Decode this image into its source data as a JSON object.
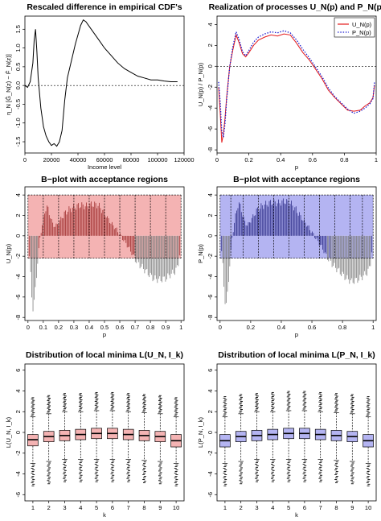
{
  "chart_data": [
    {
      "id": "p1",
      "type": "line",
      "title": "Rescaled difference in empirical CDF's",
      "xlabel": "Income level",
      "ylabel": "η_N [Ĝ_N(z) − F̂_N(z)]",
      "xlim": [
        0,
        120000
      ],
      "ylim": [
        -1.8,
        1.85
      ],
      "xticks": [
        0,
        20000,
        40000,
        60000,
        80000,
        100000,
        120000
      ],
      "yticks": [
        -1.5,
        -1.0,
        -0.5,
        0.0,
        0.5,
        1.0,
        1.5
      ],
      "reference_line": 0,
      "series": [
        {
          "color": "#000000",
          "x": [
            0,
            2000,
            4000,
            6000,
            7000,
            8000,
            9000,
            10000,
            12000,
            14000,
            16000,
            18000,
            20000,
            22000,
            24000,
            26000,
            28000,
            30000,
            32000,
            34000,
            36000,
            38000,
            40000,
            42000,
            44000,
            46000,
            50000,
            55000,
            60000,
            65000,
            70000,
            75000,
            80000,
            85000,
            90000,
            95000,
            100000,
            105000,
            110000,
            115000
          ],
          "y": [
            0.0,
            -0.05,
            0.1,
            0.6,
            1.2,
            1.5,
            0.9,
            0.2,
            -0.6,
            -1.1,
            -1.35,
            -1.5,
            -1.6,
            -1.55,
            -1.62,
            -1.5,
            -1.2,
            -0.4,
            0.2,
            0.5,
            0.8,
            1.1,
            1.35,
            1.6,
            1.75,
            1.7,
            1.5,
            1.25,
            1.0,
            0.8,
            0.6,
            0.45,
            0.35,
            0.25,
            0.2,
            0.15,
            0.15,
            0.12,
            0.1,
            0.1
          ]
        }
      ]
    },
    {
      "id": "p2",
      "type": "line",
      "title": "Realization of processes U_N(p) and P_N(p)",
      "xlabel": "p",
      "ylabel": "U_N(p) / P_N(p)",
      "xlim": [
        0,
        1
      ],
      "ylim": [
        -8.3,
        4.8
      ],
      "xticks": [
        0,
        0.2,
        0.4,
        0.6,
        0.8,
        1.0
      ],
      "yticks": [
        -8,
        -6,
        -4,
        -2,
        0,
        2,
        4
      ],
      "reference_line": 0,
      "legend": {
        "position": "top-right"
      },
      "series": [
        {
          "name": "U_N(p)",
          "color": "#e41a1c",
          "dash": false,
          "x": [
            0.01,
            0.02,
            0.03,
            0.04,
            0.05,
            0.06,
            0.08,
            0.1,
            0.12,
            0.14,
            0.16,
            0.18,
            0.2,
            0.23,
            0.26,
            0.3,
            0.34,
            0.38,
            0.42,
            0.46,
            0.5,
            0.54,
            0.58,
            0.62,
            0.66,
            0.7,
            0.74,
            0.78,
            0.82,
            0.86,
            0.9,
            0.93,
            0.96,
            0.98,
            0.99
          ],
          "y": [
            -2.0,
            -4.5,
            -7.3,
            -6.5,
            -5.0,
            -3.0,
            0.0,
            1.6,
            3.0,
            2.2,
            1.2,
            0.9,
            1.3,
            2.0,
            2.5,
            2.8,
            3.0,
            2.9,
            3.1,
            3.0,
            2.2,
            1.3,
            0.6,
            -0.3,
            -1.2,
            -2.3,
            -3.0,
            -3.6,
            -4.2,
            -4.3,
            -4.2,
            -3.8,
            -3.5,
            -3.0,
            -1.8
          ]
        },
        {
          "name": "P_N(p)",
          "color": "#1f1fd0",
          "dash": true,
          "x": [
            0.01,
            0.02,
            0.03,
            0.04,
            0.05,
            0.06,
            0.08,
            0.1,
            0.12,
            0.14,
            0.16,
            0.18,
            0.2,
            0.23,
            0.26,
            0.3,
            0.34,
            0.38,
            0.42,
            0.46,
            0.5,
            0.54,
            0.58,
            0.62,
            0.66,
            0.7,
            0.74,
            0.78,
            0.82,
            0.86,
            0.9,
            0.93,
            0.96,
            0.98,
            0.99
          ],
          "y": [
            -1.5,
            -3.5,
            -6.2,
            -6.8,
            -5.5,
            -3.3,
            0.0,
            1.9,
            3.3,
            2.5,
            1.4,
            1.0,
            1.5,
            2.3,
            2.8,
            3.1,
            3.3,
            3.2,
            3.4,
            3.2,
            2.5,
            1.6,
            0.8,
            -0.1,
            -1.0,
            -2.1,
            -2.9,
            -3.5,
            -4.1,
            -4.5,
            -4.3,
            -4.0,
            -3.6,
            -3.1,
            -1.5
          ]
        }
      ]
    },
    {
      "id": "p3",
      "type": "bar",
      "title": "B−plot with acceptance regions",
      "xlabel": "p",
      "ylabel": "U_N(p)",
      "xlim": [
        -0.02,
        1.02
      ],
      "ylim": [
        -8.3,
        4.8
      ],
      "xticks": [
        0,
        0.1,
        0.2,
        0.3,
        0.4,
        0.5,
        0.6,
        0.7,
        0.8,
        0.9,
        1.0
      ],
      "yticks": [
        -8,
        -6,
        -4,
        -2,
        0,
        2,
        4
      ],
      "band_upper": 4.0,
      "band_lower": -2.2,
      "region_breaks": [
        0.0,
        0.1,
        0.2,
        0.3,
        0.4,
        0.5,
        0.6,
        0.7,
        0.8,
        0.9,
        1.0
      ],
      "region_fill": "#f4b3b3",
      "bars_in": "#a03030",
      "bars_out": "#808080",
      "process_ref": "p2.U_N"
    },
    {
      "id": "p4",
      "type": "bar",
      "title": "B−plot with acceptance regions",
      "xlabel": "p",
      "ylabel": "P_N(p)",
      "xlim": [
        -0.02,
        1.02
      ],
      "ylim": [
        -8.3,
        4.8
      ],
      "xticks": [
        0,
        0.2,
        0.4,
        0.6,
        0.8,
        1.0
      ],
      "yticks": [
        -8,
        -6,
        -4,
        -2,
        0,
        2,
        4
      ],
      "band_upper": 4.0,
      "band_lower": -2.2,
      "region_breaks": [
        0.0,
        0.07,
        0.15,
        0.25,
        0.35,
        0.45,
        0.55,
        0.65,
        0.75,
        0.85,
        0.93,
        1.0
      ],
      "region_fill": "#b4b4f2",
      "bars_in": "#30308a",
      "bars_out": "#808080",
      "process_ref": "p2.P_N"
    },
    {
      "id": "p5",
      "type": "boxplot",
      "title": "Distribution of local minima L(U_N, I_k)",
      "xlabel": "k",
      "ylabel": "L(U_N, I_k)",
      "categories": [
        "1",
        "2",
        "3",
        "4",
        "5",
        "6",
        "7",
        "8",
        "9",
        "10"
      ],
      "ylim": [
        -6.6,
        6.6
      ],
      "yticks": [
        -6,
        -4,
        -2,
        0,
        2,
        4,
        6
      ],
      "box_fill": "#f4b3b3",
      "boxes": [
        {
          "q1": -1.3,
          "median": -0.7,
          "q3": -0.2,
          "whisker_low": -3.0,
          "whisker_high": 1.5,
          "out_high": 3.2,
          "out_low": -5.0
        },
        {
          "q1": -0.9,
          "median": -0.4,
          "q3": 0.1,
          "whisker_low": -2.8,
          "whisker_high": 1.8,
          "out_high": 3.4,
          "out_low": -4.8
        },
        {
          "q1": -0.8,
          "median": -0.3,
          "q3": 0.2,
          "whisker_low": -2.6,
          "whisker_high": 2.0,
          "out_high": 3.6,
          "out_low": -4.6
        },
        {
          "q1": -0.7,
          "median": -0.2,
          "q3": 0.3,
          "whisker_low": -2.6,
          "whisker_high": 2.0,
          "out_high": 3.6,
          "out_low": -4.6
        },
        {
          "q1": -0.6,
          "median": -0.1,
          "q3": 0.4,
          "whisker_low": -2.6,
          "whisker_high": 2.1,
          "out_high": 3.7,
          "out_low": -4.6
        },
        {
          "q1": -0.6,
          "median": -0.1,
          "q3": 0.4,
          "whisker_low": -2.6,
          "whisker_high": 2.1,
          "out_high": 3.7,
          "out_low": -4.6
        },
        {
          "q1": -0.7,
          "median": -0.2,
          "q3": 0.3,
          "whisker_low": -2.6,
          "whisker_high": 2.0,
          "out_high": 3.6,
          "out_low": -4.6
        },
        {
          "q1": -0.8,
          "median": -0.3,
          "q3": 0.2,
          "whisker_low": -2.7,
          "whisker_high": 1.9,
          "out_high": 3.5,
          "out_low": -4.7
        },
        {
          "q1": -0.9,
          "median": -0.4,
          "q3": 0.1,
          "whisker_low": -2.8,
          "whisker_high": 1.8,
          "out_high": 3.4,
          "out_low": -4.8
        },
        {
          "q1": -1.4,
          "median": -0.8,
          "q3": -0.2,
          "whisker_low": -3.0,
          "whisker_high": 1.5,
          "out_high": 3.2,
          "out_low": -5.0
        }
      ]
    },
    {
      "id": "p6",
      "type": "boxplot",
      "title": "Distribution of local minima L(P_N, I_k)",
      "xlabel": "k",
      "ylabel": "L(P_N, I_k)",
      "categories": [
        "1",
        "2",
        "3",
        "4",
        "5",
        "6",
        "7",
        "8",
        "9",
        "10"
      ],
      "ylim": [
        -6.6,
        6.6
      ],
      "yticks": [
        -6,
        -4,
        -2,
        0,
        2,
        4,
        6
      ],
      "box_fill": "#b4b4f2",
      "boxes": [
        {
          "q1": -1.4,
          "median": -0.8,
          "q3": -0.2,
          "whisker_low": -3.0,
          "whisker_high": 1.5,
          "out_high": 3.3,
          "out_low": -5.0
        },
        {
          "q1": -0.9,
          "median": -0.4,
          "q3": 0.1,
          "whisker_low": -2.8,
          "whisker_high": 1.8,
          "out_high": 3.5,
          "out_low": -4.8
        },
        {
          "q1": -0.8,
          "median": -0.3,
          "q3": 0.2,
          "whisker_low": -2.6,
          "whisker_high": 2.0,
          "out_high": 3.6,
          "out_low": -4.6
        },
        {
          "q1": -0.7,
          "median": -0.2,
          "q3": 0.3,
          "whisker_low": -2.6,
          "whisker_high": 2.0,
          "out_high": 3.7,
          "out_low": -4.6
        },
        {
          "q1": -0.6,
          "median": -0.1,
          "q3": 0.4,
          "whisker_low": -2.6,
          "whisker_high": 2.1,
          "out_high": 3.8,
          "out_low": -4.6
        },
        {
          "q1": -0.6,
          "median": -0.1,
          "q3": 0.4,
          "whisker_low": -2.6,
          "whisker_high": 2.1,
          "out_high": 3.8,
          "out_low": -4.6
        },
        {
          "q1": -0.7,
          "median": -0.2,
          "q3": 0.3,
          "whisker_low": -2.6,
          "whisker_high": 2.0,
          "out_high": 3.7,
          "out_low": -4.6
        },
        {
          "q1": -0.8,
          "median": -0.3,
          "q3": 0.2,
          "whisker_low": -2.7,
          "whisker_high": 1.9,
          "out_high": 3.6,
          "out_low": -4.7
        },
        {
          "q1": -0.9,
          "median": -0.4,
          "q3": 0.1,
          "whisker_low": -2.8,
          "whisker_high": 1.8,
          "out_high": 3.5,
          "out_low": -4.8
        },
        {
          "q1": -1.4,
          "median": -0.8,
          "q3": -0.2,
          "whisker_low": -3.0,
          "whisker_high": 1.5,
          "out_high": 3.3,
          "out_low": -5.0
        }
      ]
    }
  ]
}
